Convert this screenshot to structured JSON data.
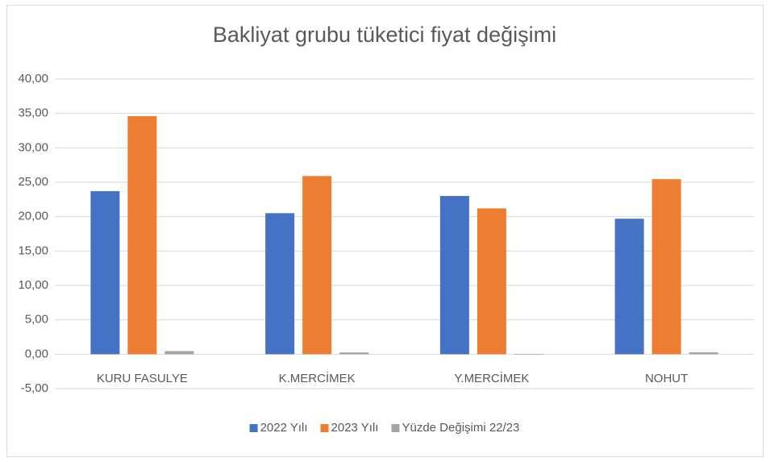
{
  "chart_data": {
    "type": "bar",
    "title": "Bakliyat grubu tüketici fiyat değişimi",
    "categories": [
      "KURU FASULYE",
      "K.MERCİMEK",
      "Y.MERCİMEK",
      "NOHUT"
    ],
    "series": [
      {
        "name": "2022 Yılı",
        "color": "#4472c4",
        "values": [
          23.7,
          20.5,
          23.0,
          19.7
        ]
      },
      {
        "name": "2023 Yılı",
        "color": "#ed7d31",
        "values": [
          34.6,
          25.9,
          21.2,
          25.45
        ]
      },
      {
        "name": "Yüzde Değişimi 22/23",
        "color": "#a5a5a5",
        "values": [
          0.46,
          0.26,
          -0.08,
          0.29
        ]
      }
    ],
    "ylim": [
      -5,
      40
    ],
    "yticks": [
      {
        "value": -5,
        "label": "-5,00"
      },
      {
        "value": 0,
        "label": "0,00"
      },
      {
        "value": 5,
        "label": "5,00"
      },
      {
        "value": 10,
        "label": "10,00"
      },
      {
        "value": 15,
        "label": "15,00"
      },
      {
        "value": 20,
        "label": "20,00"
      },
      {
        "value": 25,
        "label": "25,00"
      },
      {
        "value": 30,
        "label": "30,00"
      },
      {
        "value": 35,
        "label": "35,00"
      },
      {
        "value": 40,
        "label": "40,00"
      }
    ],
    "grid": true,
    "legend": "bottom"
  }
}
